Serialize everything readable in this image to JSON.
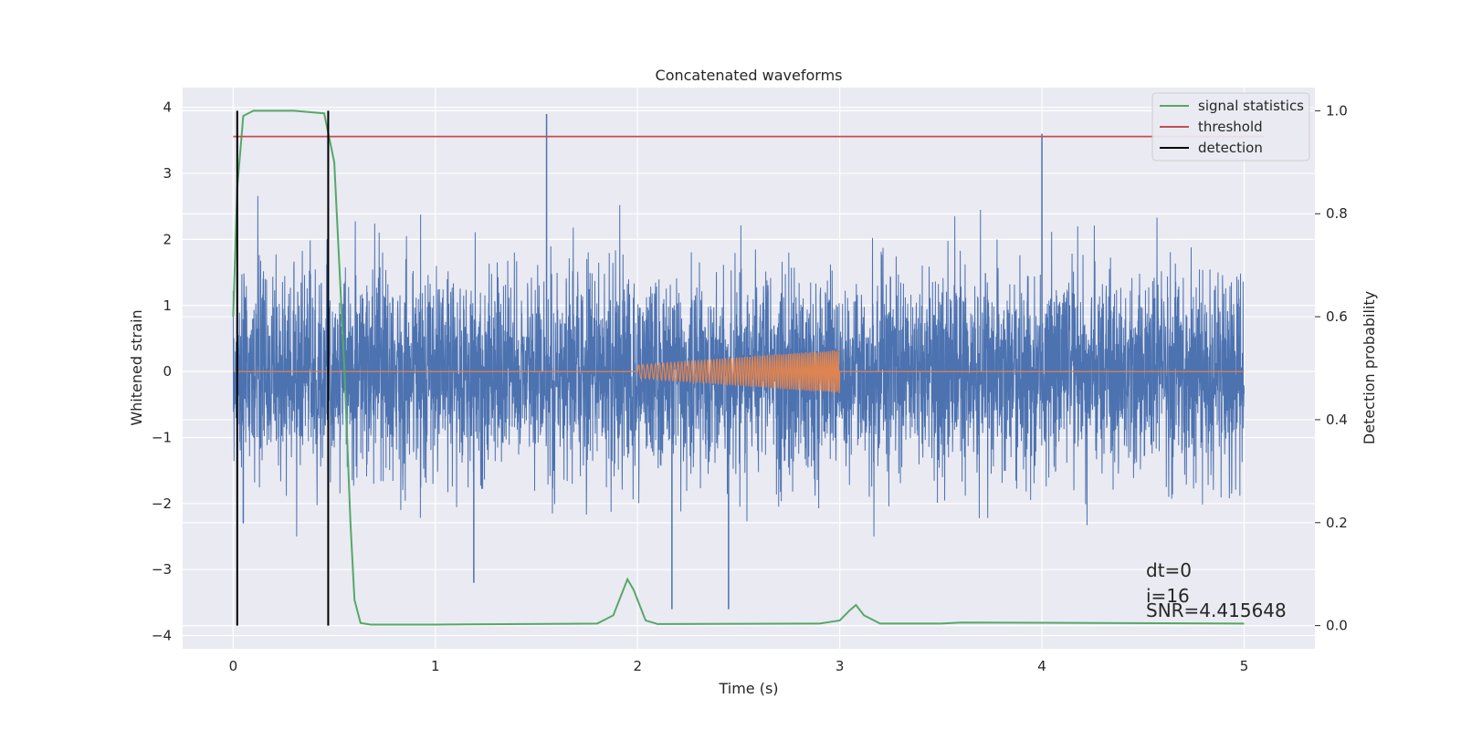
{
  "chart_data": {
    "type": "line",
    "title": "Concatenated waveforms",
    "xlabel": "Time (s)",
    "ylabel": "Whitened strain",
    "y2label": "Detection probability",
    "xlim": [
      -0.25,
      5.35
    ],
    "ylim": [
      -4.2,
      4.3
    ],
    "y2lim": [
      -0.045,
      1.045
    ],
    "xticks": [
      0,
      1,
      2,
      3,
      4,
      5
    ],
    "yticks": [
      -4,
      -3,
      -2,
      -1,
      0,
      1,
      2,
      3,
      4
    ],
    "y2ticks": [
      0.0,
      0.2,
      0.4,
      0.6,
      0.8,
      1.0
    ],
    "grid": true,
    "legend_position": "top-right",
    "series": [
      {
        "name": "",
        "axis": "left",
        "color": "#4c72b0",
        "kind": "noise",
        "x_range": [
          0,
          5
        ],
        "envelope": [
          -2.5,
          2.9
        ],
        "spikes": [
          [
            1.55,
            3.9
          ],
          [
            4.0,
            3.6
          ],
          [
            2.45,
            -3.6
          ],
          [
            2.17,
            -3.6
          ],
          [
            1.19,
            -3.2
          ],
          [
            0.02,
            2.0
          ],
          [
            0.05,
            -2.3
          ]
        ]
      },
      {
        "name": "",
        "axis": "left",
        "color": "#dd8452",
        "kind": "chirp",
        "x": [
          0,
          2,
          3,
          5
        ],
        "amplitude": [
          0,
          0.1,
          0.33,
          0
        ]
      },
      {
        "name": "signal statistics",
        "axis": "right",
        "color": "#55a868",
        "x": [
          0.0,
          0.02,
          0.05,
          0.1,
          0.3,
          0.45,
          0.5,
          0.55,
          0.58,
          0.6,
          0.63,
          0.68,
          1.0,
          1.8,
          1.88,
          1.93,
          1.95,
          1.98,
          2.04,
          2.1,
          2.9,
          3.0,
          3.05,
          3.08,
          3.12,
          3.2,
          3.5,
          3.6,
          5.0
        ],
        "y": [
          0.6,
          0.85,
          0.99,
          1.0,
          1.0,
          0.995,
          0.9,
          0.5,
          0.2,
          0.05,
          0.005,
          0.002,
          0.002,
          0.004,
          0.02,
          0.07,
          0.09,
          0.07,
          0.01,
          0.003,
          0.004,
          0.01,
          0.03,
          0.04,
          0.02,
          0.004,
          0.004,
          0.006,
          0.004
        ]
      },
      {
        "name": "threshold",
        "axis": "right",
        "color": "#c44e52",
        "x": [
          0,
          5.1
        ],
        "y": [
          0.95,
          0.95
        ]
      },
      {
        "name": "detection",
        "axis": "right",
        "color": "#000000",
        "kind": "vlines",
        "x": [
          0.02,
          0.47
        ],
        "y": [
          0,
          1
        ]
      }
    ],
    "annotations": [
      "dt=0",
      "i=16",
      "SNR=4.415648"
    ],
    "colors": {
      "plot_background": "#eaeaf2",
      "grid": "#ffffff"
    }
  }
}
